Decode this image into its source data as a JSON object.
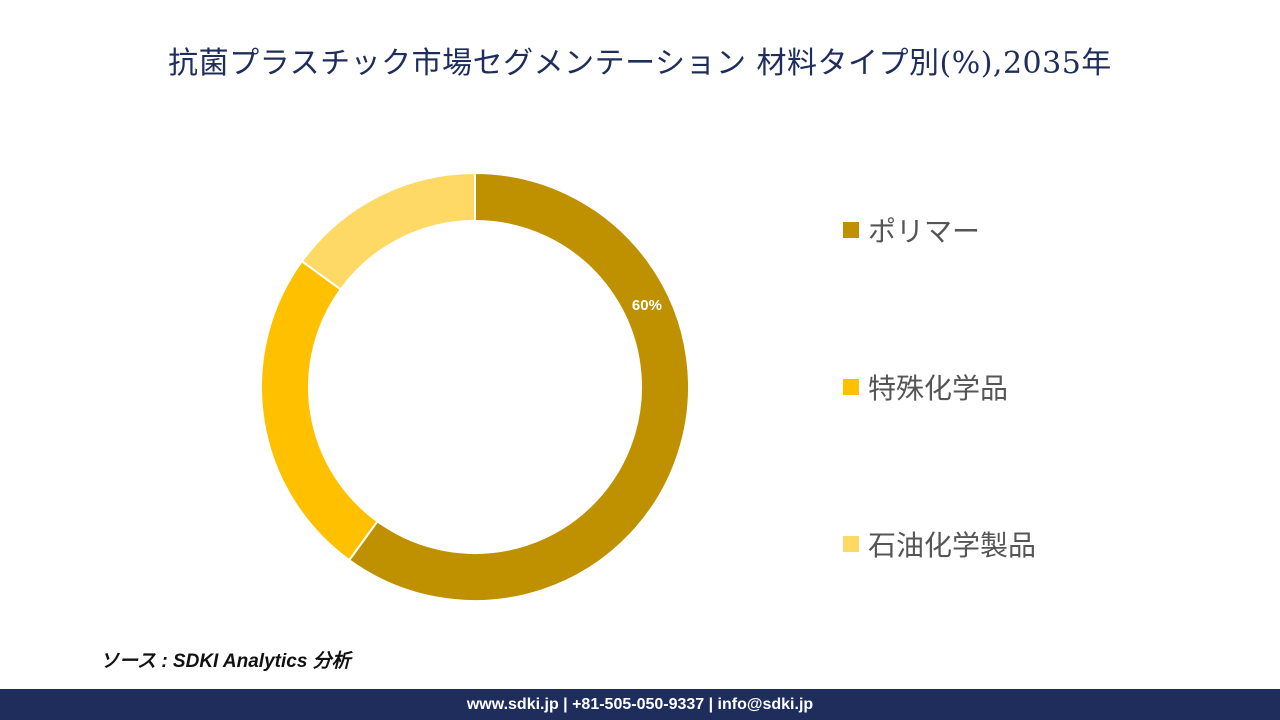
{
  "title": "抗菌プラスチック市場セグメンテーション 材料タイプ別(%),2035年",
  "source": "ソース : SDKI Analytics 分析",
  "footer": "www.sdki.jp | +81-505-050-9337 | info@sdki.jp",
  "chart_data": {
    "type": "pie",
    "donut": true,
    "unit": "%",
    "categories": [
      "ポリマー",
      "特殊化学品",
      "石油化学製品"
    ],
    "values": [
      60,
      25,
      15
    ],
    "data_labels": [
      "60%",
      "",
      ""
    ],
    "colors": [
      "#bf9000",
      "#ffc000",
      "#ffd966"
    ],
    "legend_position": "right"
  }
}
